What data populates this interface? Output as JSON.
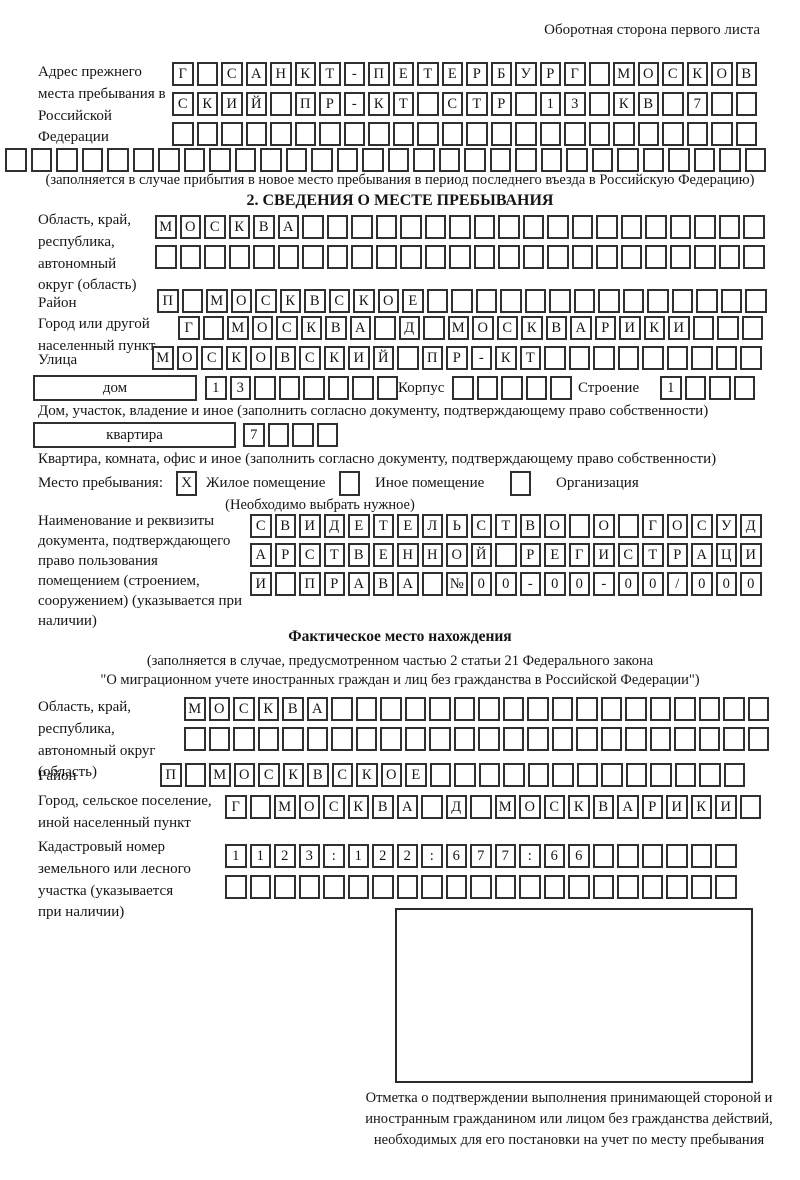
{
  "page": {
    "header_note": "Оборотная сторона первого листа"
  },
  "prev_address": {
    "label": "Адрес прежнего места пребывания в Российской Федерации",
    "rows": {
      "r1": {
        "chars": "Г САНКТ-ПЕТЕРБУРГ МОСКОВ",
        "len": 24
      },
      "r2": {
        "chars": "СКИЙ ПР-КТ СТР 13 КВ 7",
        "len": 24
      },
      "r3": {
        "chars": "",
        "len": 24
      },
      "r4": {
        "chars": "",
        "len": 30
      }
    },
    "caption": "(заполняется в случае прибытия в новое место пребывания в период последнего въезда в Российскую Федерацию)"
  },
  "section2": {
    "title": "2. СВЕДЕНИЯ О МЕСТЕ ПРЕБЫВАНИЯ",
    "oblast": {
      "label": "Область, край, республика, автономный округ (область)",
      "r1": {
        "chars": "МОСКВА",
        "len": 25
      },
      "r2": {
        "chars": "",
        "len": 25
      }
    },
    "raion": {
      "label": "Район",
      "r1": {
        "chars": "П МОСКВСКОЕ",
        "len": 25
      }
    },
    "gorod": {
      "label": "Город или другой населенный пункт",
      "r1": {
        "chars": "Г МОСКВА Д МОСКВАРИКИ",
        "len": 24
      }
    },
    "ulitsa": {
      "label": "Улица",
      "r1": {
        "chars": "МОСКОВСКИЙ ПР-КТ",
        "len": 25
      }
    },
    "dom": {
      "box_label": "дом",
      "cells": {
        "chars": "13",
        "len": 8
      },
      "korpus_label": "Корпус",
      "korpus": {
        "chars": "",
        "len": 5
      },
      "stroenie_label": "Строение",
      "stroenie": {
        "chars": "1",
        "len": 4
      },
      "caption": "Дом, участок, владение и иное (заполнить согласно документу, подтверждающему право собственности)"
    },
    "kvartira": {
      "box_label": "квартира",
      "cells": {
        "chars": "7",
        "len": 4
      },
      "caption": "Квартира, комната, офис и иное (заполнить согласно документу, подтверждающему право собственности)"
    },
    "mesto": {
      "label": "Место пребывания:",
      "opt1": {
        "value": "X",
        "label": "Жилое помещение"
      },
      "opt2": {
        "value": "",
        "label": "Иное помещение"
      },
      "opt3": {
        "value": "",
        "label": "Организация"
      },
      "note": "(Необходимо выбрать нужное)"
    },
    "doc": {
      "label": "Наименование и реквизиты документа, подтверждающего право пользования помещением (строением, сооружением) (указывается при наличии)",
      "r1": {
        "chars": "СВИДЕТЕЛЬСТВО О ГОСУД",
        "len": 21
      },
      "r2": {
        "chars": "АРСТВЕННОЙ РЕГИСТРАЦИ",
        "len": 21
      },
      "r3": {
        "chars": "И ПРАВА №00-00-00/000",
        "len": 21
      }
    }
  },
  "fact": {
    "title": "Фактическое место нахождения",
    "caption1": "(заполняется в случае, предусмотренном частью 2 статьи 21 Федерального закона",
    "caption2": "\"О миграционном учете иностранных граждан и лиц без гражданства в Российской Федерации\")",
    "oblast": {
      "label": "Область, край, республика, автономный округ (область)",
      "r1": {
        "chars": "МОСКВА",
        "len": 24
      },
      "r2": {
        "chars": "",
        "len": 24
      }
    },
    "raion": {
      "label": "Район",
      "r1": {
        "chars": "П МОСКВСКОЕ",
        "len": 24
      }
    },
    "gorod": {
      "label": "Город, сельское поселение, иной населенный пункт",
      "r1": {
        "chars": "Г МОСКВА Д МОСКВАРИКИ",
        "len": 22
      }
    },
    "kadastr": {
      "label": "Кадастровый номер земельного или лесного участка (указывается при наличии)",
      "r1": {
        "chars": "1123:122:677:66",
        "len": 21
      },
      "r2": {
        "chars": "",
        "len": 21
      }
    },
    "stamp_caption": "Отметка о подтверждении выполнения принимающей стороной и иностранным гражданином или лицом без гражданства действий, необходимых для его постановки на учет по месту пребывания"
  }
}
